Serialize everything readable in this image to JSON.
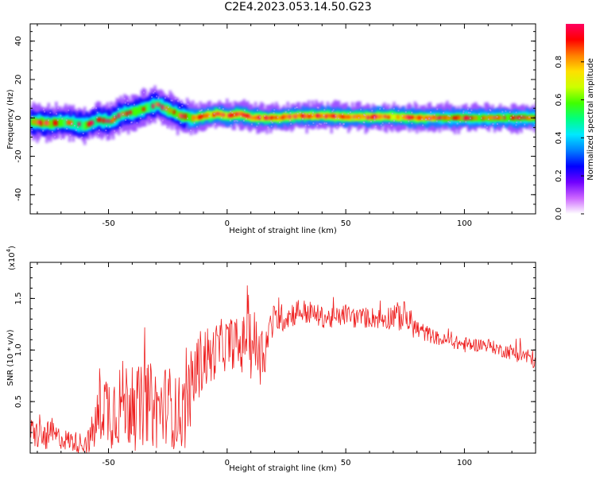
{
  "title": "C2E4.2023.053.14.50.G23",
  "chart_data": [
    {
      "type": "heatmap",
      "xlabel": "Height of straight line (km)",
      "ylabel": "Frequency (Hz)",
      "xlim": [
        -83,
        130
      ],
      "ylim": [
        -50,
        49
      ],
      "xticks": [
        -50,
        0,
        50,
        100
      ],
      "yticks": [
        -40,
        -20,
        0,
        20,
        40
      ],
      "colorbar": {
        "label": "Normalized spectral amplitude",
        "range": [
          0,
          1
        ],
        "ticks": [
          "0.0",
          "0.2",
          "0.4",
          "0.6",
          "0.8"
        ],
        "colors": [
          "#ffffff",
          "#cc66ff",
          "#7000ff",
          "#0000ff",
          "#0080ff",
          "#00e8ff",
          "#00ff80",
          "#40ff00",
          "#ccff00",
          "#ffe000",
          "#ff8000",
          "#ff0000",
          "#ff0060"
        ]
      },
      "ridge": {
        "x": [
          -83,
          -75,
          -70,
          -65,
          -60,
          -55,
          -50,
          -45,
          -40,
          -35,
          -30,
          -25,
          -20,
          -15,
          -10,
          -5,
          0,
          5,
          10,
          15,
          20,
          30,
          40,
          50,
          60,
          70,
          80,
          90,
          100,
          110,
          120,
          130
        ],
        "center_hz": [
          -2,
          -3,
          -2,
          -3,
          -4,
          -1,
          -2,
          2,
          3,
          5,
          7,
          4,
          1,
          0,
          1,
          2,
          1,
          2,
          0,
          0,
          0,
          1,
          1,
          0.5,
          0.5,
          0.5,
          0,
          0,
          0,
          0,
          0,
          0
        ],
        "amplitude": [
          0.6,
          0.55,
          0.55,
          0.5,
          0.55,
          0.5,
          0.5,
          0.5,
          0.55,
          0.55,
          0.5,
          0.55,
          0.65,
          0.75,
          0.85,
          0.9,
          0.9,
          0.95,
          0.9,
          0.9,
          0.9,
          0.9,
          0.9,
          0.85,
          0.85,
          0.8,
          0.8,
          0.75,
          0.75,
          0.75,
          0.75,
          0.75
        ]
      }
    },
    {
      "type": "line",
      "xlabel": "Height of straight line (km)",
      "ylabel": "SNR (10 * v/v)",
      "y_multiplier_label": "(x10",
      "y_multiplier_exp": "4",
      "xlim": [
        -83,
        130
      ],
      "ylim": [
        0,
        1.85
      ],
      "xticks": [
        -50,
        0,
        50,
        100
      ],
      "yticks": [
        "0.5",
        "1.0",
        "1.5"
      ],
      "color": "#ee2020",
      "series": [
        {
          "x": [
            -83,
            -78,
            -74,
            -70,
            -66,
            -62,
            -58,
            -55,
            -52,
            -50,
            -47,
            -44,
            -40,
            -37,
            -34,
            -31,
            -28,
            -25,
            -22,
            -18,
            -15,
            -12,
            -9,
            -7,
            -5,
            -2,
            0,
            3,
            6,
            9,
            10,
            12,
            14,
            16,
            18,
            20,
            25,
            30,
            35,
            40,
            45,
            50,
            55,
            60,
            65,
            70,
            75,
            80,
            85,
            90,
            95,
            100,
            105,
            110,
            115,
            120,
            125,
            130
          ],
          "values": [
            0.22,
            0.15,
            0.18,
            0.14,
            0.12,
            0.1,
            0.12,
            0.3,
            0.5,
            0.42,
            0.45,
            0.5,
            0.48,
            0.42,
            0.5,
            0.45,
            0.42,
            0.5,
            0.38,
            0.4,
            0.65,
            0.85,
            0.95,
            0.9,
            1.0,
            1.05,
            1.05,
            1.08,
            1.0,
            1.25,
            1.1,
            1.05,
            0.95,
            1.0,
            1.2,
            1.3,
            1.32,
            1.38,
            1.36,
            1.32,
            1.3,
            1.35,
            1.3,
            1.32,
            1.3,
            1.33,
            1.32,
            1.2,
            1.15,
            1.1,
            1.08,
            1.05,
            1.05,
            1.05,
            1.0,
            0.98,
            0.95,
            0.9
          ],
          "noise": [
            0.1,
            0.12,
            0.1,
            0.08,
            0.08,
            0.08,
            0.1,
            0.22,
            0.28,
            0.3,
            0.32,
            0.32,
            0.35,
            0.32,
            0.3,
            0.32,
            0.3,
            0.3,
            0.28,
            0.3,
            0.28,
            0.26,
            0.25,
            0.22,
            0.2,
            0.2,
            0.2,
            0.2,
            0.2,
            0.22,
            0.3,
            0.25,
            0.22,
            0.2,
            0.15,
            0.12,
            0.1,
            0.1,
            0.09,
            0.08,
            0.08,
            0.08,
            0.08,
            0.08,
            0.08,
            0.1,
            0.12,
            0.08,
            0.06,
            0.05,
            0.05,
            0.06,
            0.05,
            0.05,
            0.05,
            0.06,
            0.07,
            0.07
          ]
        }
      ]
    }
  ]
}
